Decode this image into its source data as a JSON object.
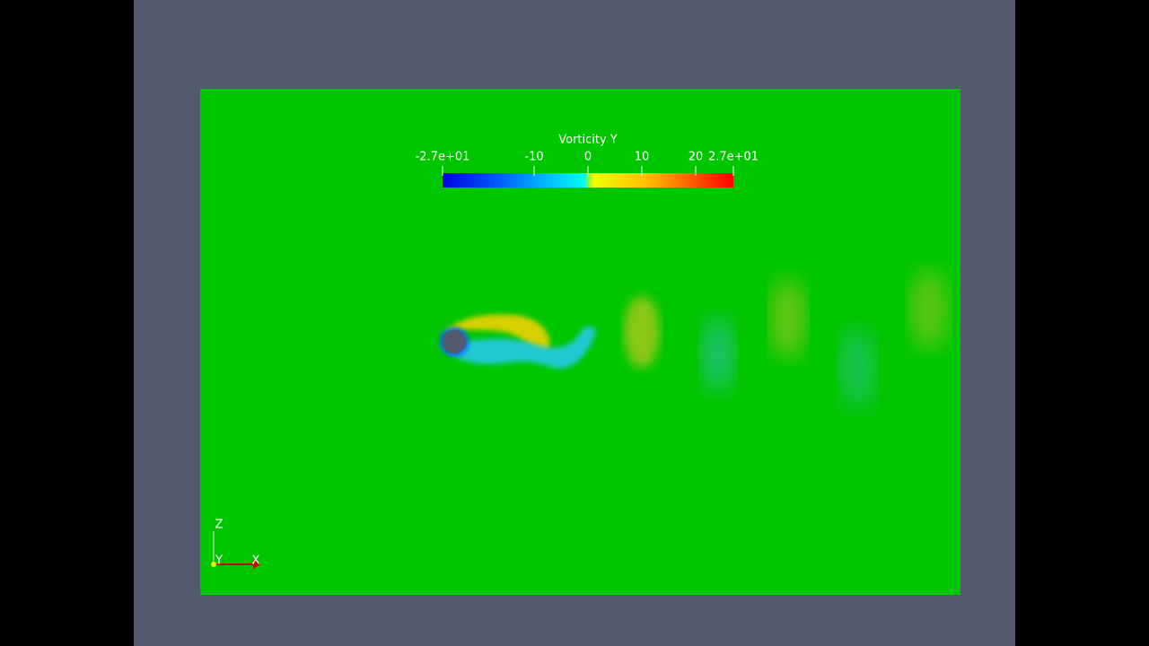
{
  "colorbar": {
    "title": "Vorticity Y",
    "range": [
      -27,
      27
    ],
    "ticks": [
      {
        "value": -27,
        "label": "-2.7e+01"
      },
      -10,
      0,
      10,
      20,
      {
        "value": 27,
        "label": "2.7e+01"
      }
    ]
  },
  "axes_triad": {
    "z": "Z",
    "y": "Y",
    "x": "X"
  }
}
